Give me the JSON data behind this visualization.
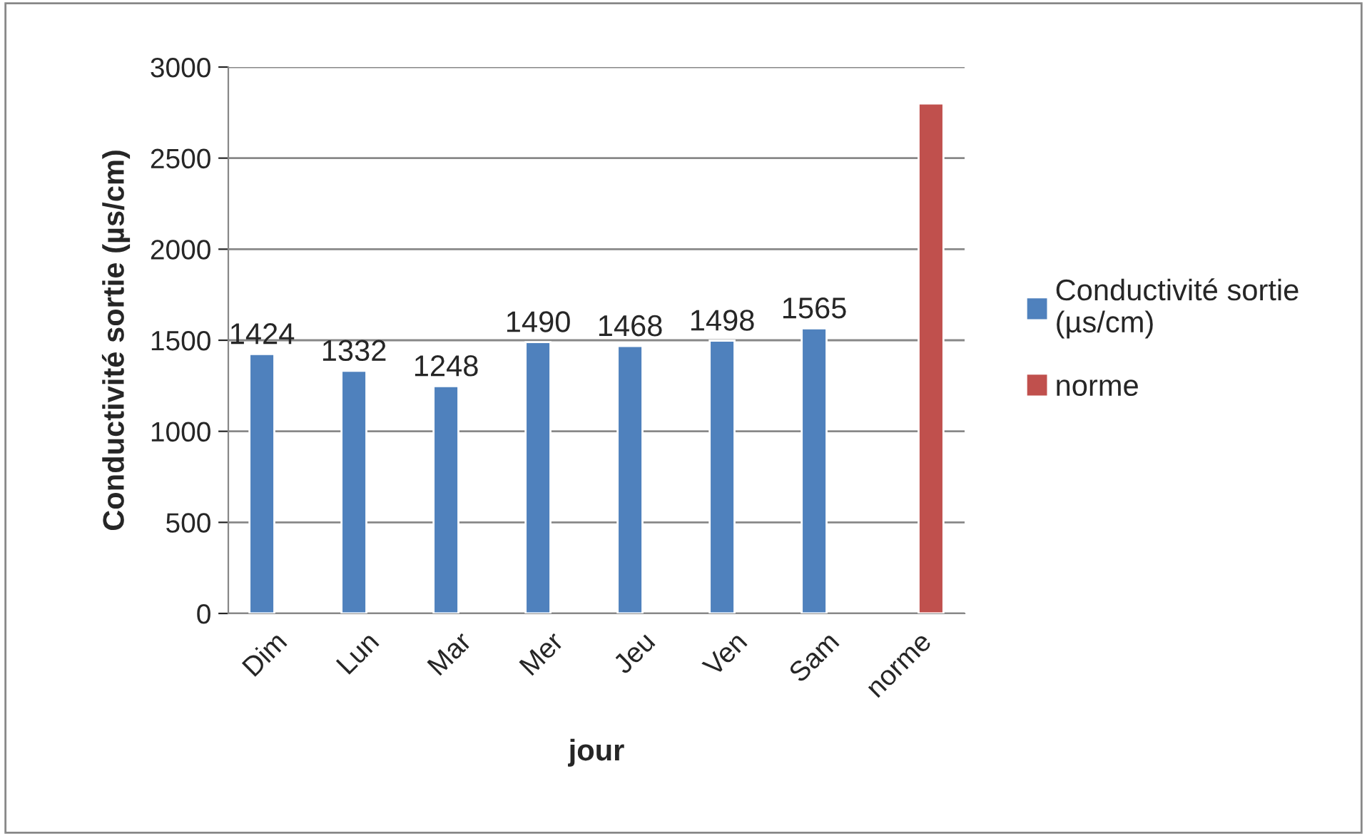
{
  "chart_data": {
    "type": "bar",
    "xlabel": "jour",
    "ylabel": "Conductivité sortie (µs/cm)",
    "categories": [
      "Dim",
      "Lun",
      "Mar",
      "Mer",
      "Jeu",
      "Ven",
      "Sam",
      "norme"
    ],
    "series": [
      {
        "name": "Conductivité sortie (µs/cm)",
        "color": "#4f81bd",
        "values": [
          1424,
          1332,
          1248,
          1490,
          1468,
          1498,
          1565,
          null
        ],
        "value_labels": [
          "1424",
          "1332",
          "1248",
          "1490",
          "1468",
          "1498",
          "1565",
          null
        ]
      },
      {
        "name": "norme",
        "color": "#c0504d",
        "values": [
          null,
          null,
          null,
          null,
          null,
          null,
          null,
          2800
        ]
      }
    ],
    "ylim": [
      0,
      3000
    ],
    "yticks": [
      0,
      500,
      1000,
      1500,
      2000,
      2500,
      3000
    ],
    "grid": "y",
    "legend": "right"
  }
}
